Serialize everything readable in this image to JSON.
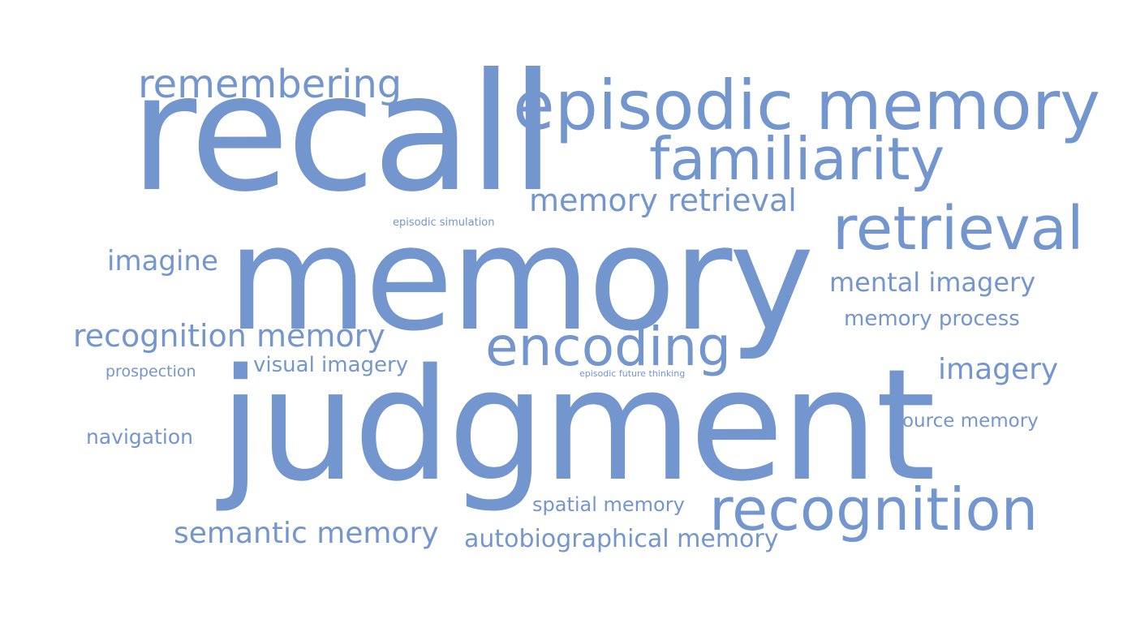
{
  "colors": {
    "word": "#7496cf",
    "background": "#ffffff"
  },
  "words": {
    "remembering": "remembering",
    "recall": "recall",
    "episodic_memory": "episodic memory",
    "familiarity": "familiarity",
    "memory_retrieval": "memory retrieval",
    "episodic_simulation": "episodic simulation",
    "retrieval": "retrieval",
    "imagine": "imagine",
    "memory": "memory",
    "mental_imagery": "mental imagery",
    "memory_process": "memory process",
    "recognition_memory": "recognition memory",
    "encoding": "encoding",
    "prospection": "prospection",
    "visual_imagery": "visual imagery",
    "episodic_future_thinking": "episodic future thinking",
    "imagery": "imagery",
    "judgment": "judgment",
    "source_memory": "source memory",
    "navigation": "navigation",
    "spatial_memory": "spatial memory",
    "recognition": "recognition",
    "semantic_memory": "semantic memory",
    "autobiographical_memory": "autobiographical memory"
  }
}
